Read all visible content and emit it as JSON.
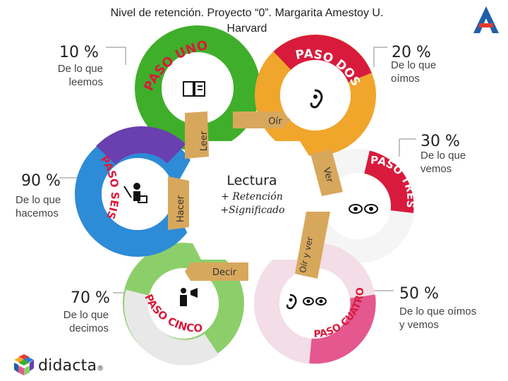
{
  "header": {
    "title_line1": "Nivel de retención. Proyecto “0”. Margarita Amestoy U.",
    "title_line2": "Harvard"
  },
  "levels": [
    {
      "percent": "10 %",
      "desc_lines": [
        "De lo que",
        "leemos"
      ]
    },
    {
      "percent": "20 %",
      "desc_lines": [
        "De lo que",
        "oímos"
      ]
    },
    {
      "percent": "30 %",
      "desc_lines": [
        "De lo que",
        "vemos"
      ]
    },
    {
      "percent": "50 %",
      "desc_lines": [
        "De lo que oímos",
        "y vemos"
      ]
    },
    {
      "percent": "70 %",
      "desc_lines": [
        "De lo que",
        "decimos"
      ]
    },
    {
      "percent": "90 %",
      "desc_lines": [
        "De lo que",
        "hacemos"
      ]
    }
  ],
  "steps": {
    "uno": "PASO UNO",
    "dos": "PASO DOS",
    "tres": "PASO TRES",
    "cuatro": "PASO CUATRO",
    "cinco": "PASO CINCO",
    "seis": "PASO SEIS"
  },
  "arrows": {
    "leer": "Leer",
    "oir": "Oír",
    "ver": "Ver",
    "oir_y_ver": "Oír y ver",
    "decir": "Decir",
    "hacer": "Hacer"
  },
  "center": {
    "title": "Lectura",
    "line1": "+ Retención",
    "line2": "+Significado"
  },
  "brand": {
    "name": "didacta",
    "mark": "®"
  },
  "colors": {
    "green": "#3fae2a",
    "red": "#d81b3c",
    "pink": "#e4578f",
    "white_ring": "#e9e9e9",
    "blue": "#2e7fd0",
    "purple": "#6a3fb0",
    "orange": "#f5a623",
    "arrow": "#d7a85c"
  }
}
